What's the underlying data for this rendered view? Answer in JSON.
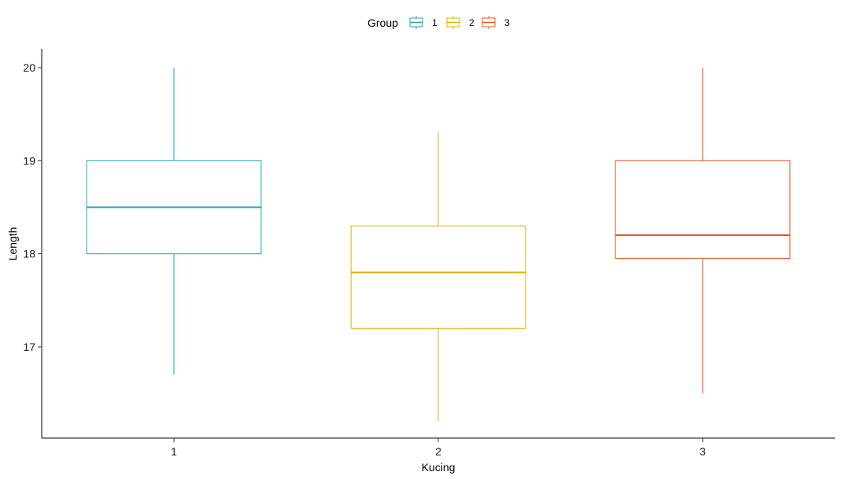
{
  "chart_data": {
    "type": "boxplot",
    "title": "",
    "xlabel": "Kucing",
    "ylabel": "Length",
    "ylim": [
      16.0,
      20.2
    ],
    "y_ticks": [
      17,
      18,
      19,
      20
    ],
    "categories": [
      "1",
      "2",
      "3"
    ],
    "legend": {
      "title": "Group",
      "position": "top",
      "entries": [
        "1",
        "2",
        "3"
      ]
    },
    "grid": false,
    "series": [
      {
        "name": "1",
        "color": "#1aa5b8",
        "min": 16.7,
        "q1": 18.0,
        "median": 18.5,
        "q3": 19.0,
        "max": 20.0
      },
      {
        "name": "2",
        "color": "#e0b000",
        "min": 16.2,
        "q1": 17.2,
        "median": 17.8,
        "q3": 18.3,
        "max": 19.3
      },
      {
        "name": "3",
        "color": "#e0561f",
        "min": 16.5,
        "q1": 17.95,
        "median": 18.2,
        "q3": 19.0,
        "max": 20.0
      }
    ]
  }
}
